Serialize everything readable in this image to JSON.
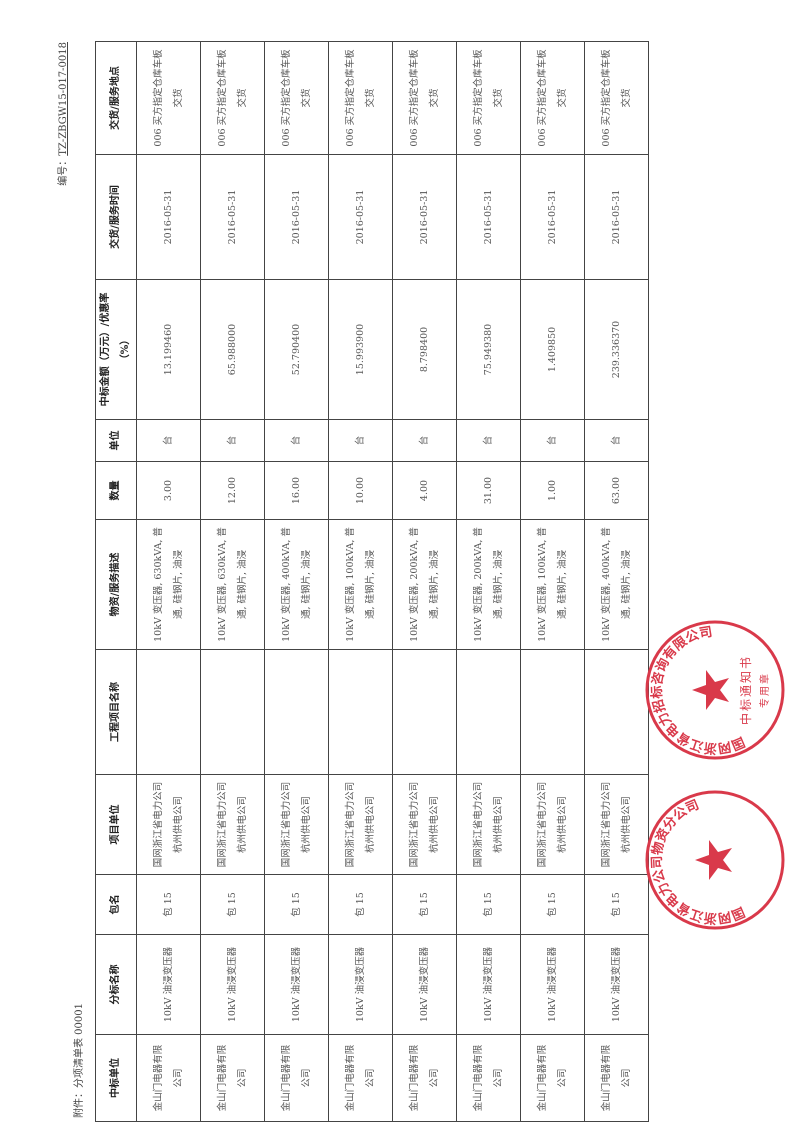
{
  "doc": {
    "code_label": "编号：",
    "code_value": "TZ-ZBGW15-017-0018",
    "caption": "附件：分项清单表 00001"
  },
  "table": {
    "headers": [
      "中标单位",
      "分标名称",
      "包名",
      "项目单位",
      "工程项目名称",
      "物资/服务描述",
      "数量",
      "单位",
      "中标金额（万元）/优惠率（%）",
      "交货/服务时间",
      "交货/服务地点"
    ],
    "rows": [
      [
        "金山门电器有限公司",
        "10kV 油浸变压器",
        "包 15",
        "国网浙江省电力公司杭州供电公司",
        "",
        "10kV 变压器, 630kVA, 普通, 硅钢片, 油浸",
        "3.00",
        "台",
        "13.199460",
        "2016-05-31",
        "006 买方指定仓库车板交货"
      ],
      [
        "金山门电器有限公司",
        "10kV 油浸变压器",
        "包 15",
        "国网浙江省电力公司杭州供电公司",
        "",
        "10kV 变压器, 630kVA, 普通, 硅钢片, 油浸",
        "12.00",
        "台",
        "65.988000",
        "2016-05-31",
        "006 买方指定仓库车板交货"
      ],
      [
        "金山门电器有限公司",
        "10kV 油浸变压器",
        "包 15",
        "国网浙江省电力公司杭州供电公司",
        "",
        "10kV 变压器, 400kVA, 普通, 硅钢片, 油浸",
        "16.00",
        "台",
        "52.790400",
        "2016-05-31",
        "006 买方指定仓库车板交货"
      ],
      [
        "金山门电器有限公司",
        "10kV 油浸变压器",
        "包 15",
        "国网浙江省电力公司杭州供电公司",
        "",
        "10kV 变压器, 100kVA, 普通, 硅钢片, 油浸",
        "10.00",
        "台",
        "15.993900",
        "2016-05-31",
        "006 买方指定仓库车板交货"
      ],
      [
        "金山门电器有限公司",
        "10kV 油浸变压器",
        "包 15",
        "国网浙江省电力公司杭州供电公司",
        "",
        "10kV 变压器, 200kVA, 普通, 硅钢片, 油浸",
        "4.00",
        "台",
        "8.798400",
        "2016-05-31",
        "006 买方指定仓库车板交货"
      ],
      [
        "金山门电器有限公司",
        "10kV 油浸变压器",
        "包 15",
        "国网浙江省电力公司杭州供电公司",
        "",
        "10kV 变压器, 200kVA, 普通, 硅钢片, 油浸",
        "31.00",
        "台",
        "75.949380",
        "2016-05-31",
        "006 买方指定仓库车板交货"
      ],
      [
        "金山门电器有限公司",
        "10kV 油浸变压器",
        "包 15",
        "国网浙江省电力公司杭州供电公司",
        "",
        "10kV 变压器, 100kVA, 普通, 硅钢片, 油浸",
        "1.00",
        "台",
        "1.409850",
        "2016-05-31",
        "006 买方指定仓库车板交货"
      ],
      [
        "金山门电器有限公司",
        "10kV 油浸变压器",
        "包 15",
        "国网浙江省电力公司杭州供电公司",
        "",
        "10kV 变压器, 400kVA, 普通, 硅钢片, 油浸",
        "63.00",
        "台",
        "239.336370",
        "2016-05-31",
        "006 买方指定仓库车板交货"
      ]
    ]
  },
  "stamps": {
    "color": "#d9394a",
    "stamp1_text": "国网浙江省电力公司物资分公司",
    "stamp2_text": "国网浙江省电力招标咨询有限公司",
    "stamp2_center": "中标通知书",
    "stamp2_bottom": "专用章"
  }
}
